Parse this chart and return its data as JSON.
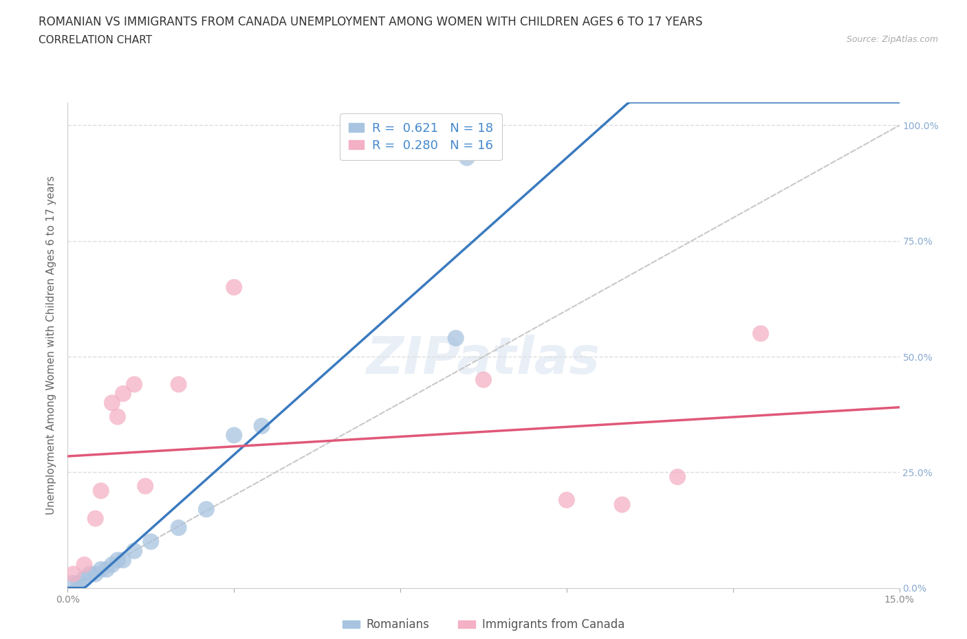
{
  "title": "ROMANIAN VS IMMIGRANTS FROM CANADA UNEMPLOYMENT AMONG WOMEN WITH CHILDREN AGES 6 TO 17 YEARS",
  "subtitle": "CORRELATION CHART",
  "source": "Source: ZipAtlas.com",
  "ylabel": "Unemployment Among Women with Children Ages 6 to 17 years",
  "xlim": [
    0.0,
    0.15
  ],
  "ylim": [
    0.0,
    1.05
  ],
  "yticks": [
    0.0,
    0.25,
    0.5,
    0.75,
    1.0
  ],
  "yticklabels_right": [
    "100.0%",
    "75.0%",
    "50.0%",
    "25.0%",
    "0.0%"
  ],
  "yticklabels_right_vals": [
    1.0,
    0.75,
    0.5,
    0.25,
    0.0
  ],
  "xtick_positions": [
    0.0,
    0.03,
    0.06,
    0.09,
    0.12,
    0.15
  ],
  "xticklabels": [
    "0.0%",
    "",
    "",
    "",
    "",
    "15.0%"
  ],
  "legend_labels": [
    "Romanians",
    "Immigrants from Canada"
  ],
  "r_romanian": 0.621,
  "n_romanian": 18,
  "r_canada": 0.28,
  "n_canada": 16,
  "romanian_color": "#a8c4e0",
  "canada_color": "#f4b0c4",
  "romanian_line_color": "#3a7abf",
  "canada_line_color": "#e05878",
  "diagonal_color": "#c8c8c8",
  "background_color": "#ffffff",
  "watermark": "ZIPatlas",
  "romanian_scatter_x": [
    0.001,
    0.002,
    0.003,
    0.004,
    0.005,
    0.006,
    0.007,
    0.008,
    0.009,
    0.01,
    0.012,
    0.015,
    0.02,
    0.025,
    0.03,
    0.035,
    0.07,
    0.072
  ],
  "romanian_scatter_y": [
    0.01,
    0.01,
    0.02,
    0.03,
    0.03,
    0.04,
    0.04,
    0.05,
    0.06,
    0.06,
    0.08,
    0.1,
    0.13,
    0.17,
    0.33,
    0.35,
    0.54,
    0.93
  ],
  "canada_scatter_x": [
    0.001,
    0.003,
    0.005,
    0.006,
    0.008,
    0.009,
    0.01,
    0.012,
    0.014,
    0.02,
    0.03,
    0.075,
    0.09,
    0.1,
    0.11,
    0.125
  ],
  "canada_scatter_y": [
    0.03,
    0.05,
    0.15,
    0.21,
    0.4,
    0.37,
    0.42,
    0.44,
    0.22,
    0.44,
    0.65,
    0.45,
    0.19,
    0.18,
    0.24,
    0.55
  ],
  "title_fontsize": 12,
  "subtitle_fontsize": 11,
  "axis_label_fontsize": 11,
  "tick_fontsize": 10,
  "legend_fontsize": 12,
  "scatter_size": 300,
  "grid_color": "#dddddd",
  "right_tick_color": "#88aad0"
}
